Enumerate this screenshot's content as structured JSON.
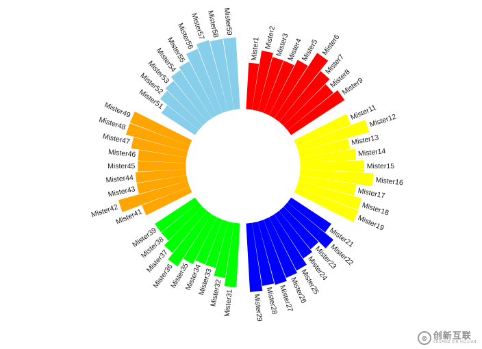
{
  "chart_data": {
    "type": "bar",
    "layout": "circular",
    "title": "",
    "xlabel": "",
    "ylabel": "",
    "ylim": [
      0,
      100
    ],
    "grid": false,
    "legend": "none",
    "groups": [
      {
        "name": "A",
        "color": "#ff0000",
        "categories": [
          "Mister1",
          "Mister2",
          "Mister3",
          "Mister4",
          "Mister5",
          "Mister6",
          "Mister7",
          "Mister8",
          "Mister9"
        ],
        "values": [
          58,
          75,
          70,
          70,
          78,
          98,
          82,
          74,
          80
        ]
      },
      {
        "name": "B",
        "color": "#ffff00",
        "categories": [
          "Mister11",
          "Mister12",
          "Mister13",
          "Mister14",
          "Mister15",
          "Mister16",
          "Mister17",
          "Mister18",
          "Mister19"
        ],
        "values": [
          73,
          92,
          64,
          70,
          80,
          92,
          72,
          82,
          83
        ]
      },
      {
        "name": "C",
        "color": "#0000ff",
        "categories": [
          "Mister21",
          "Mister22",
          "Mister23",
          "Mister24",
          "Mister25",
          "Mister26",
          "Mister27",
          "Mister28",
          "Mister29"
        ],
        "values": [
          60,
          74,
          62,
          66,
          75,
          78,
          82,
          80,
          86
        ]
      },
      {
        "name": "D",
        "color": "#00ff00",
        "categories": [
          "Mister31",
          "Mister32",
          "Mister33",
          "Mister34",
          "Mister35",
          "Mister36",
          "Mister37",
          "Mister38",
          "Mister39"
        ],
        "values": [
          80,
          70,
          60,
          60,
          66,
          78,
          68,
          60,
          60
        ]
      },
      {
        "name": "E",
        "color": "#ffa500",
        "categories": [
          "Mister41",
          "Mister42",
          "Mister43",
          "Mister44",
          "Mister45",
          "Mister46",
          "Mister47",
          "Mister48",
          "Mister49"
        ],
        "values": [
          64,
          90,
          63,
          63,
          60,
          60,
          70,
          80,
          80
        ]
      },
      {
        "name": "F",
        "color": "#87ceeb",
        "categories": [
          "Mister51",
          "Mister52",
          "Mister53",
          "Mister54",
          "Mister55",
          "Mister56",
          "Mister57",
          "Mister58",
          "Mister59"
        ],
        "values": [
          50,
          62,
          66,
          72,
          76,
          86,
          92,
          90,
          90
        ]
      }
    ]
  },
  "watermark": {
    "logo_glyph": "⊗",
    "text": "创新互联",
    "subtext": "CHUANG XIN HU LIAN"
  }
}
